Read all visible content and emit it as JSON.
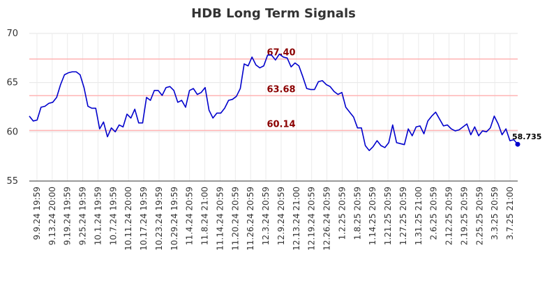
{
  "chart_data": {
    "type": "line",
    "title": "HDB Long Term Signals",
    "xlabel": "",
    "ylabel": "",
    "ylim": [
      55,
      70
    ],
    "yticks": [
      55,
      60,
      65,
      70
    ],
    "grid": true,
    "line_color": "#0000cc",
    "level_color": "#ffb3b3",
    "level_label_color": "#8b0000",
    "x_tick_labels": [
      "9.9.24 19:59",
      "9.13.24 20:00",
      "9.19.24 19:59",
      "9.25.24 19:59",
      "10.1.24 19:59",
      "10.7.24 19:59",
      "10.11.24 20:00",
      "10.17.24 19:59",
      "10.23.24 19:59",
      "10.29.24 19:59",
      "11.4.24 20:59",
      "11.8.24 21:00",
      "11.14.24 20:59",
      "11.20.24 20:59",
      "11.26.24 20:59",
      "12.3.24 20:59",
      "12.9.24 20:59",
      "12.13.24 21:00",
      "12.19.24 20:59",
      "12.26.24 20:59",
      "1.2.25 20:59",
      "1.8.25 20:59",
      "1.14.25 20:59",
      "1.21.25 20:59",
      "1.27.25 20:59",
      "1.31.25 21:00",
      "2.6.25 20:59",
      "2.12.25 20:59",
      "2.19.25 20:59",
      "2.25.25 20:59",
      "3.3.25 20:59",
      "3.7.25 21:00"
    ],
    "levels": [
      {
        "value": 67.4,
        "label": "67.40"
      },
      {
        "value": 63.68,
        "label": "63.68"
      },
      {
        "value": 60.14,
        "label": "60.14"
      }
    ],
    "last_value_label": "58.735",
    "series": [
      {
        "values": [
          61.6,
          61.1,
          61.2,
          62.5,
          62.6,
          62.9,
          63.0,
          63.5,
          64.8,
          65.8,
          66.0,
          66.1,
          66.1,
          65.8,
          64.5,
          62.6,
          62.4,
          62.4,
          60.3,
          61.0,
          59.5,
          60.4,
          60.0,
          60.7,
          60.5,
          61.8,
          61.4,
          62.3,
          60.9,
          60.9,
          63.5,
          63.2,
          64.2,
          64.2,
          63.7,
          64.5,
          64.6,
          64.2,
          63.0,
          63.2,
          62.5,
          64.2,
          64.4,
          63.8,
          64.0,
          64.5,
          62.2,
          61.4,
          61.9,
          61.9,
          62.4,
          63.2,
          63.3,
          63.6,
          64.4,
          66.9,
          66.7,
          67.6,
          66.8,
          66.5,
          66.7,
          67.8,
          67.8,
          67.3,
          67.9,
          67.6,
          67.5,
          66.6,
          67.0,
          66.7,
          65.6,
          64.4,
          64.3,
          64.3,
          65.1,
          65.2,
          64.8,
          64.6,
          64.1,
          63.8,
          64.0,
          62.5,
          62.0,
          61.5,
          60.4,
          60.4,
          58.6,
          58.1,
          58.5,
          59.1,
          58.6,
          58.4,
          58.9,
          60.7,
          58.9,
          58.8,
          58.7,
          60.3,
          59.6,
          60.5,
          60.6,
          59.8,
          61.1,
          61.6,
          62.0,
          61.3,
          60.6,
          60.7,
          60.3,
          60.1,
          60.2,
          60.5,
          60.8,
          59.7,
          60.5,
          59.6,
          60.1,
          60.0,
          60.4,
          61.6,
          60.8,
          59.7,
          60.3,
          59.1,
          59.2,
          58.735
        ]
      }
    ]
  }
}
